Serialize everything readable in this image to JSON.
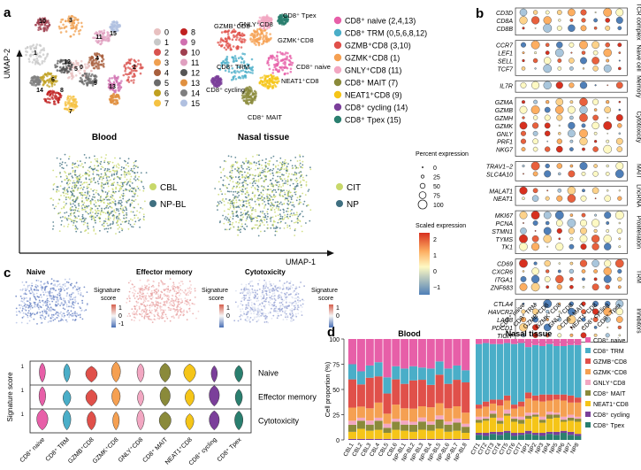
{
  "panel_labels": [
    "a",
    "b",
    "c",
    "d"
  ],
  "panel_a": {
    "umap_top_left": {
      "cluster_ids": [
        "0",
        "1",
        "2",
        "3",
        "4",
        "5",
        "6",
        "7",
        "8",
        "9",
        "10",
        "11",
        "12",
        "13",
        "14",
        "15"
      ],
      "colors": [
        "#e8c0c0",
        "#c8c8c8",
        "#d9534f",
        "#f0a050",
        "#a85f3d",
        "#6b6b6b",
        "#c0a020",
        "#f5c242",
        "#c02020",
        "#d070b0",
        "#a04050",
        "#e0a0c0",
        "#555555",
        "#e09040",
        "#7f7f7f",
        "#b0c0e0"
      ]
    },
    "umap_top_right": {
      "labels": [
        "CD8⁺ naive (2,4,13)",
        "CD8⁺ TRM (0,5,6,8,12)",
        "GZMB⁺CD8 (3,10)",
        "GZMK⁺CD8 (1)",
        "GNLY⁺CD8 (11)",
        "CD8⁺ MAIT (7)",
        "NEAT1⁺CD8 (9)",
        "CD8⁺ cycling (14)",
        "CD8⁺ Tpex (15)"
      ],
      "colors": [
        "#e75fa8",
        "#4aaec8",
        "#e0504a",
        "#f5a052",
        "#f2a7c2",
        "#8a8a3a",
        "#f5c518",
        "#7b3f9a",
        "#2a7f6f"
      ],
      "annotations": [
        "GZMB⁺CD8",
        "CD8⁺ Tpex",
        "GNLY⁺CD8",
        "GZMK⁺CD8",
        "CD8⁺ TRM",
        "CD8⁺ naive",
        "NEAT1⁺CD8",
        "CD8⁺ cycling",
        "CD8⁺ MAIT"
      ]
    },
    "titles": [
      "Blood",
      "Nasal tissue"
    ],
    "blood_legend": [
      "CBL",
      "NP-BL"
    ],
    "nasal_legend": [
      "CIT",
      "NP"
    ],
    "axis_y": "UMAP-2",
    "axis_x": "UMAP-1"
  },
  "panel_b": {
    "genes": [
      "CD3D",
      "CD8A",
      "CD8B",
      "CCR7",
      "LEF1",
      "SELL",
      "TCF7",
      "IL7R",
      "GZMA",
      "GZMB",
      "GZMH",
      "GZMK",
      "GNLY",
      "PRF1",
      "NKG7",
      "TRAV1−2",
      "SLC4A10",
      "MALAT1",
      "NEAT1",
      "MKI67",
      "PCNA",
      "STMN1",
      "TYMS",
      "TK1",
      "CD69",
      "CXCR6",
      "ITGA1",
      "ZNF683",
      "CTLA4",
      "HAVCR2",
      "LAG3",
      "PDCD1",
      "TIGIT"
    ],
    "groups": [
      {
        "label": "TCR complex",
        "count": 3
      },
      {
        "label": "Naive cell",
        "count": 4
      },
      {
        "label": "Memory",
        "count": 1
      },
      {
        "label": "Cytotoxicity",
        "count": 7
      },
      {
        "label": "MAIT",
        "count": 2
      },
      {
        "label": "LncRNA",
        "count": 2
      },
      {
        "label": "Proliferation",
        "count": 5
      },
      {
        "label": "TRM",
        "count": 4
      },
      {
        "label": "Inhibitors",
        "count": 5
      }
    ],
    "cell_types": [
      "CD8⁺ naive",
      "CD8⁺ TRM",
      "GZMB⁺CD8",
      "GZMK⁺CD8",
      "GNLY⁺CD8",
      "CD8⁺ MAIT",
      "NEAT1⁺CD8",
      "CD8⁺ cycling",
      "CD8⁺ Tpex"
    ],
    "percent_title": "Percent expression",
    "percent_values": [
      "0",
      "25",
      "50",
      "75",
      "100"
    ],
    "scaled_title": "Scaled expression",
    "scaled_ticks": [
      "2",
      "1",
      "0",
      "−1"
    ]
  },
  "panel_c": {
    "score_titles": [
      "Naive",
      "Effector memory",
      "Cytotoxicity"
    ],
    "scale_title": "Signature score",
    "scale_ticks_a": [
      "1",
      "0",
      "-1"
    ],
    "scale_ticks_b": [
      "1",
      "0"
    ],
    "scale_ticks_c": [
      "1",
      "0"
    ],
    "violin_ylabel": "Signature score",
    "violin_rows": [
      "Naive",
      "Effector memory",
      "Cytotoxicity"
    ],
    "violin_tick": "1",
    "cell_types": [
      "CD8⁺ naive",
      "CD8⁺ TRM",
      "GZMB⁺CD8",
      "GZMK⁺CD8",
      "GNLY⁺CD8",
      "CD8⁺ MAIT",
      "NEAT1⁺CD8",
      "CD8⁺ cycling",
      "CD8⁺ Tpex"
    ],
    "colors": [
      "#e75fa8",
      "#4aaec8",
      "#e0504a",
      "#f5a052",
      "#f2a7c2",
      "#8a8a3a",
      "#f5c518",
      "#7b3f9a",
      "#2a7f6f"
    ]
  },
  "chart_data": {
    "type": "bar",
    "stacked": true,
    "ylabel": "Cell proportion (%)",
    "ylim": [
      0,
      100
    ],
    "yticks": [
      "0",
      "25",
      "50",
      "75",
      "100"
    ],
    "facets": [
      {
        "title": "Blood",
        "categories": [
          "CBL1",
          "CBL2",
          "CBL3",
          "CBL4",
          "CBL5",
          "CBL6",
          "NP-BL1",
          "NP-BL2",
          "NP-BL3",
          "NP-BL4",
          "NP-BL5",
          "NP-BL6",
          "NP-BL7",
          "NP-BL8"
        ],
        "series": [
          {
            "name": "CD8⁺ Tpex",
            "values": [
              0,
              0,
              0,
              0,
              0,
              0,
              0,
              0,
              0,
              0,
              0,
              0,
              0,
              0
            ]
          },
          {
            "name": "CD8⁺ cycling",
            "values": [
              1,
              1,
              1,
              1,
              1,
              1,
              1,
              1,
              1,
              1,
              1,
              1,
              1,
              1
            ]
          },
          {
            "name": "NEAT1⁺CD8",
            "values": [
              7,
              10,
              8,
              9,
              6,
              9,
              8,
              7,
              9,
              8,
              10,
              7,
              8,
              6
            ]
          },
          {
            "name": "CD8⁺ MAIT",
            "values": [
              7,
              8,
              6,
              9,
              5,
              8,
              6,
              7,
              8,
              6,
              9,
              7,
              8,
              6
            ]
          },
          {
            "name": "GNLY⁺CD8",
            "values": [
              4,
              3,
              4,
              3,
              4,
              3,
              4,
              3,
              4,
              3,
              4,
              3,
              4,
              3
            ]
          },
          {
            "name": "GZMK⁺CD8",
            "values": [
              13,
              11,
              12,
              15,
              10,
              14,
              12,
              13,
              11,
              14,
              12,
              13,
              12,
              11
            ]
          },
          {
            "name": "GZMB⁺CD8",
            "values": [
              28,
              22,
              30,
              26,
              20,
              25,
              24,
              28,
              26,
              22,
              28,
              24,
              26,
              30
            ]
          },
          {
            "name": "CD8⁺ TRM",
            "values": [
              15,
              13,
              12,
              14,
              16,
              13,
              15,
              14,
              12,
              16,
              13,
              15,
              14,
              12
            ]
          },
          {
            "name": "CD8⁺ naive",
            "values": [
              25,
              32,
              26,
              23,
              38,
              27,
              29,
              27,
              28,
              29,
              22,
              29,
              26,
              31
            ]
          }
        ]
      },
      {
        "title": "Nasal tissue",
        "categories": [
          "CIT1",
          "CIT2",
          "CIT3",
          "CIT4",
          "CIT5",
          "CIT6",
          "CIT7",
          "NP1",
          "NP2",
          "NP3",
          "NP4",
          "NP5",
          "NP6",
          "NP7",
          "NP8"
        ],
        "series": [
          {
            "name": "CD8⁺ Tpex",
            "values": [
              5,
              4,
              6,
              5,
              7,
              4,
              5,
              6,
              5,
              4,
              6,
              5,
              7,
              5,
              4
            ]
          },
          {
            "name": "CD8⁺ cycling",
            "values": [
              2,
              3,
              2,
              3,
              2,
              3,
              2,
              3,
              2,
              3,
              2,
              3,
              2,
              3,
              2
            ]
          },
          {
            "name": "NEAT1⁺CD8",
            "values": [
              10,
              12,
              14,
              8,
              15,
              11,
              9,
              12,
              16,
              10,
              13,
              14,
              9,
              11,
              12
            ]
          },
          {
            "name": "CD8⁺ MAIT",
            "values": [
              3,
              2,
              4,
              3,
              2,
              3,
              4,
              3,
              2,
              3,
              4,
              3,
              2,
              3,
              3
            ]
          },
          {
            "name": "GNLY⁺CD8",
            "values": [
              3,
              2,
              3,
              3,
              4,
              2,
              3,
              3,
              2,
              3,
              3,
              2,
              3,
              3,
              2
            ]
          },
          {
            "name": "GZMK⁺CD8",
            "values": [
              8,
              10,
              7,
              12,
              9,
              8,
              10,
              14,
              12,
              15,
              11,
              13,
              16,
              12,
              14
            ]
          },
          {
            "name": "GZMB⁺CD8",
            "values": [
              4,
              5,
              4,
              6,
              5,
              4,
              5,
              6,
              5,
              7,
              6,
              5,
              6,
              7,
              5
            ]
          },
          {
            "name": "CD8⁺ TRM",
            "values": [
              60,
              58,
              55,
              55,
              52,
              60,
              58,
              45,
              50,
              48,
              50,
              48,
              48,
              50,
              52
            ]
          },
          {
            "name": "CD8⁺ naive",
            "values": [
              5,
              4,
              5,
              5,
              4,
              5,
              4,
              8,
              6,
              7,
              5,
              7,
              7,
              6,
              6
            ]
          }
        ]
      }
    ],
    "legend": [
      "CD8⁺ naive",
      "CD8⁺ TRM",
      "GZMB⁺CD8",
      "GZMK⁺CD8",
      "GNLY⁺CD8",
      "CD8⁺ MAIT",
      "NEAT1⁺CD8",
      "CD8⁺ cycling",
      "CD8⁺ Tpex"
    ],
    "colors": {
      "CD8⁺ naive": "#e75fa8",
      "CD8⁺ TRM": "#4aaec8",
      "GZMB⁺CD8": "#e0504a",
      "GZMK⁺CD8": "#f5a052",
      "GNLY⁺CD8": "#f2a7c2",
      "CD8⁺ MAIT": "#8a8a3a",
      "NEAT1⁺CD8": "#f5c518",
      "CD8⁺ cycling": "#7b3f9a",
      "CD8⁺ Tpex": "#2a7f6f"
    }
  }
}
